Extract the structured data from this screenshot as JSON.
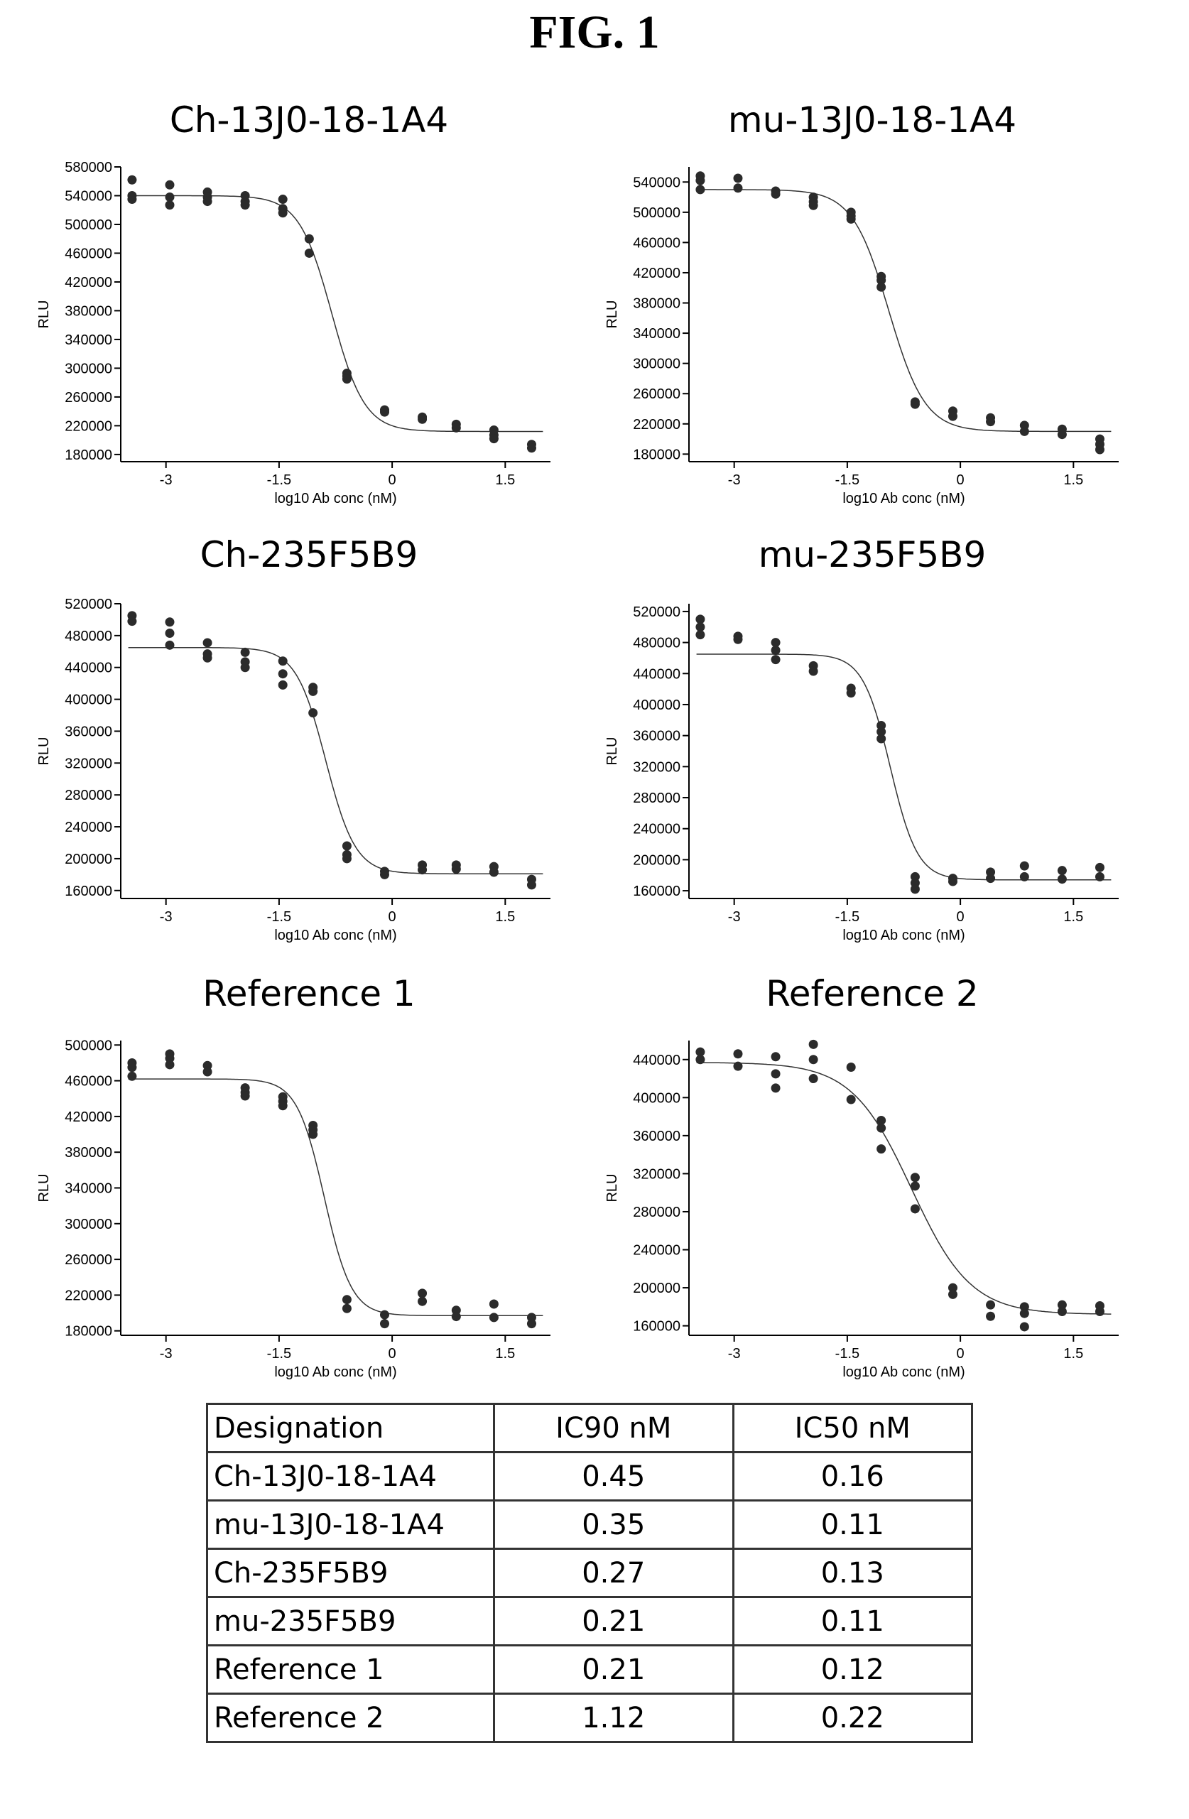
{
  "figure_title": "FIG. 1",
  "chart_data": [
    {
      "type": "scatter",
      "title": "Ch-13J0-18-1A4",
      "xlabel": "log10 Ab conc (nM)",
      "ylabel": "RLU",
      "xlim": [
        -3.6,
        2.1
      ],
      "ylim": [
        170000,
        580000
      ],
      "xticks": [
        -3,
        -1.5,
        0,
        1.5
      ],
      "xtick_labels": [
        "-3",
        "-1.5",
        "0",
        "1.5"
      ],
      "yticks": [
        180000,
        220000,
        260000,
        300000,
        340000,
        380000,
        420000,
        460000,
        500000,
        540000,
        580000
      ],
      "points": {
        "x": [
          -3.45,
          -3.45,
          -3.45,
          -2.95,
          -2.95,
          -2.95,
          -2.45,
          -2.45,
          -2.45,
          -1.95,
          -1.95,
          -1.95,
          -1.45,
          -1.45,
          -1.45,
          -1.1,
          -1.1,
          -0.6,
          -0.6,
          -0.6,
          -0.1,
          -0.1,
          0.4,
          0.4,
          0.85,
          0.85,
          1.35,
          1.35,
          1.35,
          1.85,
          1.85
        ],
        "y": [
          562000,
          540000,
          535000,
          555000,
          538000,
          527000,
          545000,
          538000,
          532000,
          540000,
          532000,
          527000,
          535000,
          522000,
          516000,
          480000,
          460000,
          293000,
          289000,
          285000,
          242000,
          239000,
          232000,
          229000,
          222000,
          217000,
          214000,
          207000,
          202000,
          194000,
          189000
        ]
      },
      "curve": {
        "top": 540000,
        "bottom": 212000,
        "ic50_log": -0.8,
        "hill": 2.0
      }
    },
    {
      "type": "scatter",
      "title": "mu-13J0-18-1A4",
      "xlabel": "log10 Ab conc (nM)",
      "ylabel": "RLU",
      "xlim": [
        -3.6,
        2.1
      ],
      "ylim": [
        170000,
        560000
      ],
      "xticks": [
        -3,
        -1.5,
        0,
        1.5
      ],
      "xtick_labels": [
        "-3",
        "-1.5",
        "0",
        "1.5"
      ],
      "yticks": [
        180000,
        220000,
        260000,
        300000,
        340000,
        380000,
        420000,
        460000,
        500000,
        540000
      ],
      "points": {
        "x": [
          -3.45,
          -3.45,
          -3.45,
          -2.95,
          -2.95,
          -2.45,
          -2.45,
          -1.95,
          -1.95,
          -1.95,
          -1.45,
          -1.45,
          -1.45,
          -1.05,
          -1.05,
          -1.05,
          -0.6,
          -0.6,
          -0.1,
          -0.1,
          0.4,
          0.4,
          0.85,
          0.85,
          1.35,
          1.35,
          1.85,
          1.85,
          1.85
        ],
        "y": [
          548000,
          542000,
          530000,
          545000,
          532000,
          528000,
          524000,
          520000,
          514000,
          509000,
          500000,
          495000,
          491000,
          415000,
          410000,
          401000,
          249000,
          246000,
          237000,
          230000,
          228000,
          223000,
          218000,
          210000,
          213000,
          206000,
          200000,
          193000,
          186000
        ]
      },
      "curve": {
        "top": 530000,
        "bottom": 210000,
        "ic50_log": -0.95,
        "hill": 1.8
      }
    },
    {
      "type": "scatter",
      "title": "Ch-235F5B9",
      "xlabel": "log10 Ab conc (nM)",
      "ylabel": "RLU",
      "xlim": [
        -3.6,
        2.1
      ],
      "ylim": [
        150000,
        520000
      ],
      "xticks": [
        -3,
        -1.5,
        0,
        1.5
      ],
      "xtick_labels": [
        "-3",
        "-1.5",
        "0",
        "1.5"
      ],
      "yticks": [
        160000,
        200000,
        240000,
        280000,
        320000,
        360000,
        400000,
        440000,
        480000,
        520000
      ],
      "points": {
        "x": [
          -3.45,
          -3.45,
          -2.95,
          -2.95,
          -2.95,
          -2.45,
          -2.45,
          -2.45,
          -1.95,
          -1.95,
          -1.95,
          -1.45,
          -1.45,
          -1.45,
          -1.05,
          -1.05,
          -1.05,
          -0.6,
          -0.6,
          -0.6,
          -0.1,
          -0.1,
          0.4,
          0.4,
          0.85,
          0.85,
          1.35,
          1.35,
          1.85,
          1.85
        ],
        "y": [
          505000,
          498000,
          497000,
          483000,
          468000,
          471000,
          457000,
          452000,
          459000,
          447000,
          440000,
          448000,
          432000,
          418000,
          415000,
          410000,
          383000,
          216000,
          205000,
          200000,
          184000,
          180000,
          192000,
          186000,
          192000,
          187000,
          190000,
          183000,
          174000,
          167000
        ]
      },
      "curve": {
        "top": 465000,
        "bottom": 181000,
        "ic50_log": -0.88,
        "hill": 2.2
      }
    },
    {
      "type": "scatter",
      "title": "mu-235F5B9",
      "xlabel": "log10 Ab conc (nM)",
      "ylabel": "RLU",
      "xlim": [
        -3.6,
        2.1
      ],
      "ylim": [
        150000,
        530000
      ],
      "xticks": [
        -3,
        -1.5,
        0,
        1.5
      ],
      "xtick_labels": [
        "-3",
        "-1.5",
        "0",
        "1.5"
      ],
      "yticks": [
        160000,
        200000,
        240000,
        280000,
        320000,
        360000,
        400000,
        440000,
        480000,
        520000
      ],
      "points": {
        "x": [
          -3.45,
          -3.45,
          -3.45,
          -2.95,
          -2.95,
          -2.45,
          -2.45,
          -2.45,
          -1.95,
          -1.95,
          -1.45,
          -1.45,
          -1.05,
          -1.05,
          -1.05,
          -0.6,
          -0.6,
          -0.6,
          -0.1,
          -0.1,
          0.4,
          0.4,
          0.85,
          0.85,
          1.35,
          1.35,
          1.85,
          1.85
        ],
        "y": [
          510000,
          500000,
          490000,
          488000,
          484000,
          480000,
          470000,
          458000,
          450000,
          443000,
          421000,
          415000,
          373000,
          365000,
          356000,
          178000,
          170000,
          162000,
          176000,
          172000,
          184000,
          176000,
          192000,
          178000,
          186000,
          175000,
          190000,
          178000
        ]
      },
      "curve": {
        "top": 465000,
        "bottom": 174000,
        "ic50_log": -0.93,
        "hill": 2.4
      }
    },
    {
      "type": "scatter",
      "title": "Reference 1",
      "xlabel": "log10 Ab conc (nM)",
      "ylabel": "RLU",
      "xlim": [
        -3.6,
        2.1
      ],
      "ylim": [
        175000,
        505000
      ],
      "xticks": [
        -3,
        -1.5,
        0,
        1.5
      ],
      "xtick_labels": [
        "-3",
        "-1.5",
        "0",
        "1.5"
      ],
      "yticks": [
        180000,
        220000,
        260000,
        300000,
        340000,
        380000,
        420000,
        460000,
        500000
      ],
      "points": {
        "x": [
          -3.45,
          -3.45,
          -3.45,
          -2.95,
          -2.95,
          -2.95,
          -2.45,
          -2.45,
          -1.95,
          -1.95,
          -1.95,
          -1.45,
          -1.45,
          -1.45,
          -1.05,
          -1.05,
          -1.05,
          -0.6,
          -0.6,
          -0.1,
          -0.1,
          0.4,
          0.4,
          0.85,
          0.85,
          1.35,
          1.35,
          1.85,
          1.85
        ],
        "y": [
          480000,
          475000,
          465000,
          490000,
          485000,
          478000,
          477000,
          470000,
          452000,
          447000,
          443000,
          442000,
          437000,
          432000,
          410000,
          405000,
          400000,
          215000,
          205000,
          198000,
          188000,
          222000,
          213000,
          203000,
          196000,
          210000,
          195000,
          195000,
          188000
        ]
      },
      "curve": {
        "top": 462000,
        "bottom": 197000,
        "ic50_log": -0.9,
        "hill": 2.4
      }
    },
    {
      "type": "scatter",
      "title": "Reference 2",
      "xlabel": "log10 Ab conc (nM)",
      "ylabel": "RLU",
      "xlim": [
        -3.6,
        2.1
      ],
      "ylim": [
        150000,
        460000
      ],
      "xticks": [
        -3,
        -1.5,
        0,
        1.5
      ],
      "xtick_labels": [
        "-3",
        "-1.5",
        "0",
        "1.5"
      ],
      "yticks": [
        160000,
        200000,
        240000,
        280000,
        320000,
        360000,
        400000,
        440000
      ],
      "points": {
        "x": [
          -3.45,
          -3.45,
          -2.95,
          -2.95,
          -2.45,
          -2.45,
          -2.45,
          -1.95,
          -1.95,
          -1.95,
          -1.45,
          -1.45,
          -1.05,
          -1.05,
          -1.05,
          -0.6,
          -0.6,
          -0.6,
          -0.1,
          -0.1,
          0.4,
          0.4,
          0.85,
          0.85,
          0.85,
          1.35,
          1.35,
          1.85,
          1.85
        ],
        "y": [
          448000,
          440000,
          446000,
          433000,
          443000,
          425000,
          410000,
          456000,
          440000,
          420000,
          432000,
          398000,
          376000,
          368000,
          346000,
          316000,
          307000,
          283000,
          200000,
          193000,
          182000,
          170000,
          180000,
          173000,
          159000,
          182000,
          175000,
          181000,
          175000
        ]
      },
      "curve": {
        "top": 437000,
        "bottom": 172000,
        "ic50_log": -0.65,
        "hill": 1.1
      }
    }
  ],
  "table": {
    "headers": [
      "Designation",
      "IC90 nM",
      "IC50 nM"
    ],
    "rows": [
      [
        "Ch-13J0-18-1A4",
        "0.45",
        "0.16"
      ],
      [
        "mu-13J0-18-1A4",
        "0.35",
        "0.11"
      ],
      [
        "Ch-235F5B9",
        "0.27",
        "0.13"
      ],
      [
        "mu-235F5B9",
        "0.21",
        "0.11"
      ],
      [
        "Reference 1",
        "0.21",
        "0.12"
      ],
      [
        "Reference 2",
        "1.12",
        "0.22"
      ]
    ]
  }
}
